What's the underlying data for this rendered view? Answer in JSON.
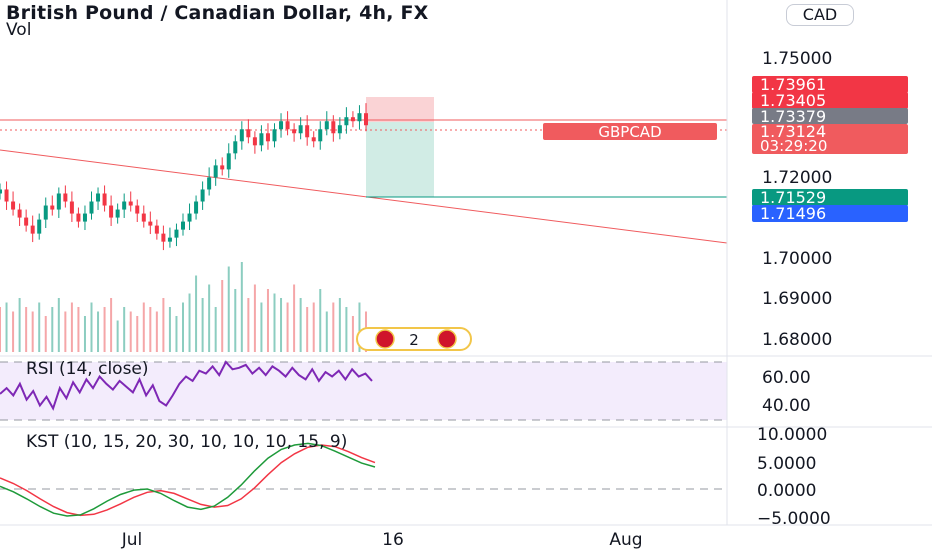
{
  "header": {
    "title": "British Pound / Canadian Dollar, 4h, FX",
    "volume_label": "Vol",
    "currency_button": "CAD"
  },
  "price_axis": {
    "ticks": [
      "1.75000",
      "1.72000",
      "1.70000",
      "1.69000",
      "1.68000"
    ]
  },
  "price_badges": [
    {
      "text": "1.73961",
      "color": "#f23645"
    },
    {
      "text": "1.73405",
      "color": "#f23645"
    },
    {
      "text": "1.73379",
      "color": "#787b86"
    },
    {
      "text": "1.73124",
      "color": "#f05b5e"
    },
    {
      "text": "03:29:20",
      "color": "#f05b5e"
    },
    {
      "text": "1.71529",
      "color": "#089981"
    },
    {
      "text": "1.71496",
      "color": "#2962ff"
    }
  ],
  "symbol_label": {
    "text": "GBPCAD",
    "color": "#f05b5e"
  },
  "events_marker": {
    "count": "2"
  },
  "rsi": {
    "label": "RSI (14, close)",
    "ticks": [
      "60.00",
      "40.00"
    ],
    "line_color": "#7e28b5"
  },
  "kst": {
    "label": "KST (10, 15, 20, 30, 10, 10, 10, 15, 9)",
    "ticks": [
      "10.0000",
      "5.0000",
      "0.0000",
      "−5.0000"
    ],
    "kst_color": "#1e9a3a",
    "signal_color": "#f23645"
  },
  "time_axis": {
    "labels": [
      "Jul",
      "16",
      "Aug"
    ]
  },
  "chart_data": [
    {
      "type": "candlestick",
      "title": "British Pound / Canadian Dollar, 4h, FX",
      "symbol": "GBPCAD",
      "ylim": [
        1.678,
        1.762
      ],
      "last_price": 1.73124,
      "trendline_horizontal": 1.7338,
      "trendline_diagonal": {
        "start": 1.729,
        "end": 1.703
      },
      "position_tool": {
        "entry": 1.73379,
        "stop": 1.73961,
        "target": 1.71529
      },
      "close_series": [
        1.717,
        1.714,
        1.712,
        1.71,
        1.708,
        1.706,
        1.7095,
        1.713,
        1.712,
        1.716,
        1.714,
        1.711,
        1.709,
        1.711,
        1.714,
        1.716,
        1.713,
        1.71,
        1.712,
        1.714,
        1.713,
        1.711,
        1.709,
        1.708,
        1.706,
        1.704,
        1.705,
        1.707,
        1.709,
        1.711,
        1.714,
        1.717,
        1.72,
        1.723,
        1.722,
        1.726,
        1.729,
        1.732,
        1.73,
        1.728,
        1.731,
        1.729,
        1.732,
        1.734,
        1.732,
        1.731,
        1.733,
        1.73,
        1.729,
        1.732,
        1.734,
        1.731,
        1.733,
        1.735,
        1.734,
        1.736,
        1.733
      ]
    },
    {
      "type": "bar",
      "series_label": "Vol",
      "values": [
        0.5,
        0.55,
        0.45,
        0.6,
        0.5,
        0.45,
        0.55,
        0.4,
        0.5,
        0.6,
        0.45,
        0.55,
        0.5,
        0.4,
        0.55,
        0.45,
        0.5,
        0.6,
        0.35,
        0.5,
        0.45,
        0.4,
        0.55,
        0.5,
        0.45,
        0.6,
        0.5,
        0.4,
        0.55,
        0.65,
        0.85,
        0.6,
        0.75,
        0.5,
        0.8,
        0.95,
        0.7,
        1.0,
        0.6,
        0.75,
        0.55,
        0.7,
        0.65,
        0.6,
        0.55,
        0.75,
        0.6,
        0.5,
        0.55,
        0.7,
        0.45,
        0.55,
        0.6,
        0.5,
        0.4,
        0.55,
        0.45
      ],
      "colors": [
        "down",
        "up",
        "down",
        "up",
        "down",
        "down",
        "up",
        "down",
        "up",
        "up",
        "down",
        "down",
        "down",
        "up",
        "up",
        "up",
        "down",
        "down",
        "up",
        "up",
        "down",
        "down",
        "down",
        "down",
        "down",
        "down",
        "up",
        "up",
        "up",
        "up",
        "up",
        "up",
        "up",
        "up",
        "down",
        "up",
        "up",
        "up",
        "down",
        "down",
        "up",
        "down",
        "up",
        "up",
        "down",
        "down",
        "up",
        "down",
        "down",
        "up",
        "up",
        "down",
        "up",
        "up",
        "down",
        "up",
        "down"
      ]
    },
    {
      "type": "line",
      "series_label": "RSI (14, close)",
      "ylim": [
        27,
        73
      ],
      "bands": [
        70,
        30
      ],
      "values": [
        48,
        52,
        47,
        55,
        44,
        50,
        40,
        46,
        38,
        52,
        45,
        56,
        49,
        58,
        52,
        60,
        55,
        51,
        57,
        53,
        49,
        58,
        47,
        54,
        43,
        40,
        47,
        55,
        60,
        57,
        64,
        62,
        67,
        61,
        70,
        65,
        66,
        68,
        62,
        66,
        61,
        67,
        64,
        60,
        66,
        61,
        58,
        65,
        57,
        63,
        60,
        64,
        58,
        65,
        60,
        62,
        57
      ]
    },
    {
      "type": "line",
      "series_label": "KST (10, 15, 20, 30, 10, 10, 10, 15, 9)",
      "ylim": [
        -7.5,
        12.5
      ],
      "series": [
        {
          "values": [
            0.5,
            -0.5,
            -1.8,
            -3.2,
            -4.4,
            -4.9,
            -4.7,
            -3.6,
            -2.2,
            -1.0,
            -0.2,
            0.0,
            -0.8,
            -2.1,
            -3.3,
            -3.7,
            -3.1,
            -1.5,
            0.7,
            3.3,
            5.6,
            7.2,
            8.0,
            8.3,
            7.9,
            6.9,
            5.8,
            4.7,
            4.0
          ]
        },
        {
          "values": [
            2.0,
            1.0,
            -0.3,
            -1.8,
            -3.2,
            -4.3,
            -4.8,
            -4.6,
            -3.8,
            -2.7,
            -1.5,
            -0.6,
            -0.3,
            -0.8,
            -1.8,
            -2.8,
            -3.3,
            -3.0,
            -1.8,
            0.2,
            2.6,
            4.8,
            6.4,
            7.6,
            8.0,
            7.7,
            6.8,
            5.7,
            4.8
          ]
        }
      ]
    }
  ]
}
